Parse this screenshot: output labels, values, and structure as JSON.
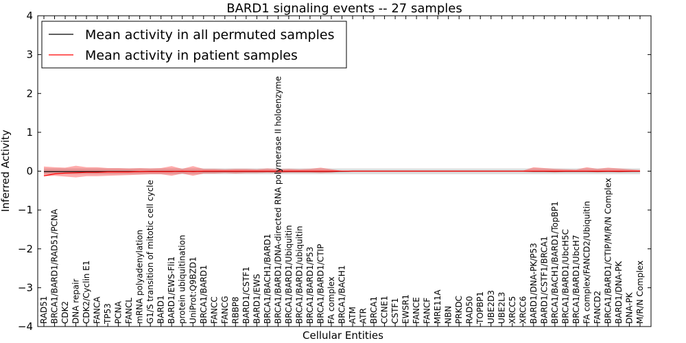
{
  "chart_data": {
    "type": "line",
    "title": "BARD1 signaling events -- 27 samples",
    "xlabel": "Cellular Entities",
    "ylabel": "Inferred Activity",
    "ylim": [
      -4,
      4
    ],
    "yticks": [
      -4,
      -3,
      -2,
      -1,
      0,
      1,
      2,
      3,
      4
    ],
    "ytick_labels": [
      "−4",
      "−3",
      "−2",
      "−1",
      "0",
      "1",
      "2",
      "3",
      "4"
    ],
    "legend": {
      "location": "top-left",
      "entries": [
        {
          "label": "Mean activity in all permuted samples",
          "color": "#000000"
        },
        {
          "label": "Mean activity in patient samples",
          "color": "#ff0000"
        }
      ]
    },
    "categories": [
      "RAD51",
      "BRCA1/BARD1/RAD51/PCNA",
      "CDK2",
      "DNA repair",
      "CDK2/Cyclin E1",
      "FANCA",
      "TP53",
      "PCNA",
      "FANCL",
      "mRNA polyadenylation",
      "G1/S transition of mitotic cell cycle",
      "BARD1",
      "BARD1/EWS-Fli1",
      "protein ubiquitination",
      "UniProt:Q9BZD1",
      "BRCA1/BARD1",
      "FANCC",
      "FANCG",
      "RBBP8",
      "BARD1/CSTF1",
      "BARD1/EWS",
      "BRCA1/BACH1/BARD1",
      "BRCA1/BARD1/DNA-directed RNA polymerase II holoenzyme",
      "BRCA1/BARD1/Ubiquitin",
      "BRCA1/BARD1/ubiquitin",
      "BRCA1/BARD1/P53",
      "BRCA1/BARD1/CTIP",
      "FA complex",
      "BRCA1/BACH1",
      "ATM",
      "ATR",
      "BRCA1",
      "CCNE1",
      "CSTF1",
      "EWSR1",
      "FANCE",
      "FANCF",
      "MRE11A",
      "NBN",
      "PRKDC",
      "RAD50",
      "TOPBP1",
      "UBE2D3",
      "UBE2L3",
      "XRCC5",
      "XRCC6",
      "BARD1/DNA-PK/P53",
      "BARD1/CSTF1/BRCA1",
      "BRCA1/BACH1/BARD1/TopBP1",
      "BRCA1/BARD1/UbcH5C",
      "BRCA1/BARD1/UbcH7",
      "FA complex/FANCD2/Ubiquitin",
      "FANCD2",
      "BRCA1/BARD1/CTIP/M/R/N Complex",
      "BARD1/DNA-PK",
      "DNA-PK",
      "M/R/N Complex"
    ],
    "series": [
      {
        "name": "Mean activity in all permuted samples",
        "color": "#000000",
        "values": [
          -0.01,
          -0.01,
          -0.01,
          -0.01,
          -0.01,
          -0.01,
          -0.01,
          -0.01,
          -0.01,
          -0.01,
          -0.005,
          -0.005,
          -0.005,
          -0.005,
          -0.005,
          -0.005,
          -0.005,
          -0.005,
          -0.005,
          -0.005,
          -0.005,
          -0.005,
          -0.005,
          -0.005,
          -0.005,
          -0.005,
          -0.005,
          -0.005,
          -0.005,
          0,
          0,
          0,
          0,
          0,
          0,
          0,
          0,
          0,
          0,
          0,
          0,
          0,
          0,
          0,
          0,
          0,
          -0.005,
          -0.005,
          -0.005,
          -0.005,
          -0.005,
          -0.005,
          -0.005,
          -0.005,
          -0.005,
          -0.005,
          -0.005
        ],
        "band_lower": [
          -0.08,
          -0.08,
          -0.08,
          -0.08,
          -0.08,
          -0.08,
          -0.08,
          -0.08,
          -0.08,
          -0.08,
          -0.08,
          -0.08,
          -0.08,
          -0.08,
          -0.08,
          -0.08,
          -0.08,
          -0.08,
          -0.08,
          -0.08,
          -0.08,
          -0.08,
          -0.08,
          -0.08,
          -0.08,
          -0.08,
          -0.08,
          -0.08,
          -0.08,
          -0.08,
          -0.08,
          -0.08,
          -0.08,
          -0.08,
          -0.08,
          -0.08,
          -0.08,
          -0.08,
          -0.08,
          -0.08,
          -0.08,
          -0.08,
          -0.08,
          -0.08,
          -0.08,
          -0.08,
          -0.08,
          -0.08,
          -0.08,
          -0.08,
          -0.08,
          -0.08,
          -0.08,
          -0.08,
          -0.08,
          -0.08,
          -0.08
        ],
        "band_upper": [
          0.07,
          0.07,
          0.07,
          0.07,
          0.07,
          0.07,
          0.07,
          0.07,
          0.07,
          0.07,
          0.07,
          0.07,
          0.07,
          0.07,
          0.07,
          0.07,
          0.07,
          0.07,
          0.07,
          0.07,
          0.07,
          0.07,
          0.07,
          0.07,
          0.07,
          0.07,
          0.07,
          0.07,
          0.07,
          0.07,
          0.07,
          0.07,
          0.07,
          0.07,
          0.07,
          0.07,
          0.07,
          0.07,
          0.07,
          0.07,
          0.07,
          0.07,
          0.07,
          0.07,
          0.07,
          0.07,
          0.07,
          0.07,
          0.07,
          0.07,
          0.07,
          0.07,
          0.07,
          0.07,
          0.07,
          0.07,
          0.07
        ]
      },
      {
        "name": "Mean activity in patient samples",
        "color": "#ff0000",
        "values": [
          -0.12,
          -0.07,
          -0.05,
          -0.04,
          -0.03,
          -0.03,
          -0.02,
          -0.02,
          -0.02,
          -0.01,
          -0.01,
          -0.01,
          -0.01,
          0,
          -0.01,
          0,
          0,
          0,
          0,
          0,
          0,
          0,
          0,
          0,
          0,
          0,
          0,
          0,
          0,
          0,
          0,
          0,
          0,
          0,
          0,
          0,
          0,
          0,
          0,
          0,
          0,
          0,
          0,
          0,
          0,
          0,
          0,
          0,
          0,
          0,
          0,
          0,
          0,
          0,
          0,
          0,
          0
        ],
        "band_lower": [
          -0.13,
          -0.12,
          -0.14,
          -0.16,
          -0.13,
          -0.13,
          -0.12,
          -0.11,
          -0.1,
          -0.09,
          -0.08,
          -0.08,
          -0.12,
          -0.06,
          -0.12,
          -0.06,
          -0.06,
          -0.05,
          -0.06,
          -0.05,
          -0.05,
          -0.04,
          -0.05,
          -0.04,
          -0.04,
          -0.04,
          -0.05,
          -0.04,
          -0.01,
          -0.01,
          -0.01,
          -0.01,
          -0.01,
          -0.01,
          -0.01,
          -0.01,
          -0.01,
          -0.01,
          -0.01,
          -0.01,
          -0.01,
          -0.01,
          -0.01,
          -0.01,
          -0.01,
          -0.01,
          -0.02,
          -0.02,
          -0.03,
          -0.02,
          -0.02,
          -0.02,
          -0.03,
          -0.02,
          -0.03,
          -0.02,
          -0.01
        ],
        "band_upper": [
          0.12,
          0.1,
          0.09,
          0.14,
          0.1,
          0.1,
          0.08,
          0.08,
          0.07,
          0.08,
          0.07,
          0.08,
          0.13,
          0.06,
          0.13,
          0.06,
          0.06,
          0.05,
          0.06,
          0.06,
          0.05,
          0.07,
          0.05,
          0.06,
          0.05,
          0.06,
          0.09,
          0.05,
          0.01,
          0.01,
          0.01,
          0.01,
          0.01,
          0.01,
          0.01,
          0.01,
          0.01,
          0.01,
          0.01,
          0.01,
          0.01,
          0.01,
          0.01,
          0.01,
          0.01,
          0.01,
          0.1,
          0.08,
          0.06,
          0.05,
          0.04,
          0.1,
          0.06,
          0.09,
          0.07,
          0.05,
          0.03
        ]
      }
    ]
  }
}
